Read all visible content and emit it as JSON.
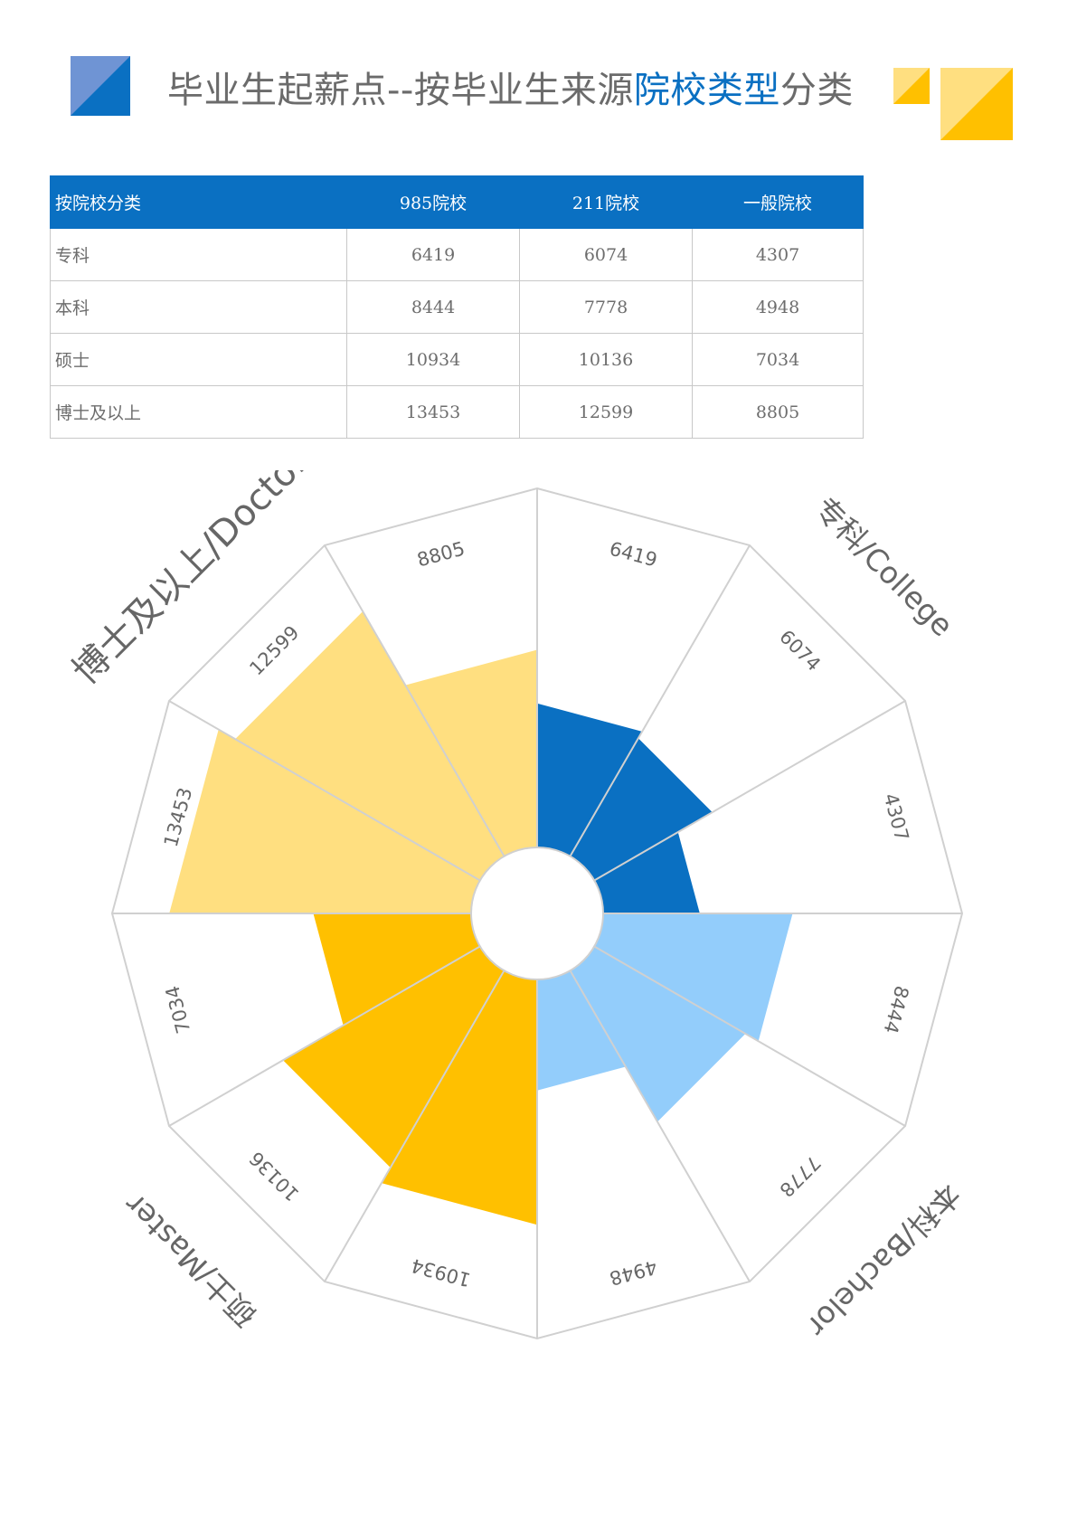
{
  "title": {
    "part1": "毕业生起薪点--按毕业生来源",
    "highlight": "院校类型",
    "part2": "分类"
  },
  "colors": {
    "accent_blue": "#0a70c2",
    "title_gray": "#6b6b6b",
    "yellow": "#ffc000",
    "light_yellow": "#ffdf80",
    "light_blue": "#93cdfb",
    "mid_blue": "#6f94d4"
  },
  "table": {
    "headers": [
      "按院校分类",
      "985院校",
      "211院校",
      "一般院校"
    ],
    "rows": [
      {
        "category": "专科",
        "values": [
          "6419",
          "6074",
          "4307"
        ]
      },
      {
        "category": "本科",
        "values": [
          "8444",
          "7778",
          "4948"
        ]
      },
      {
        "category": "硕士",
        "values": [
          "10934",
          "10136",
          "7034"
        ]
      },
      {
        "category": "博士及以上",
        "values": [
          "13453",
          "12599",
          "8805"
        ]
      }
    ]
  },
  "chart_data": {
    "type": "polar-bar",
    "groups": [
      {
        "label": "专科/College",
        "color": "#0a70c2",
        "values": [
          6419,
          6074,
          4307
        ]
      },
      {
        "label": "本科/Bachelor",
        "color": "#93cdfb",
        "values": [
          8444,
          7778,
          4948
        ]
      },
      {
        "label": "硕士/Master",
        "color": "#ffc000",
        "values": [
          10934,
          10136,
          7034
        ]
      },
      {
        "label": "博士及以上/Doctor",
        "color": "#ffdf80",
        "values": [
          13453,
          12599,
          8805
        ]
      }
    ],
    "radial_max": 16000
  }
}
